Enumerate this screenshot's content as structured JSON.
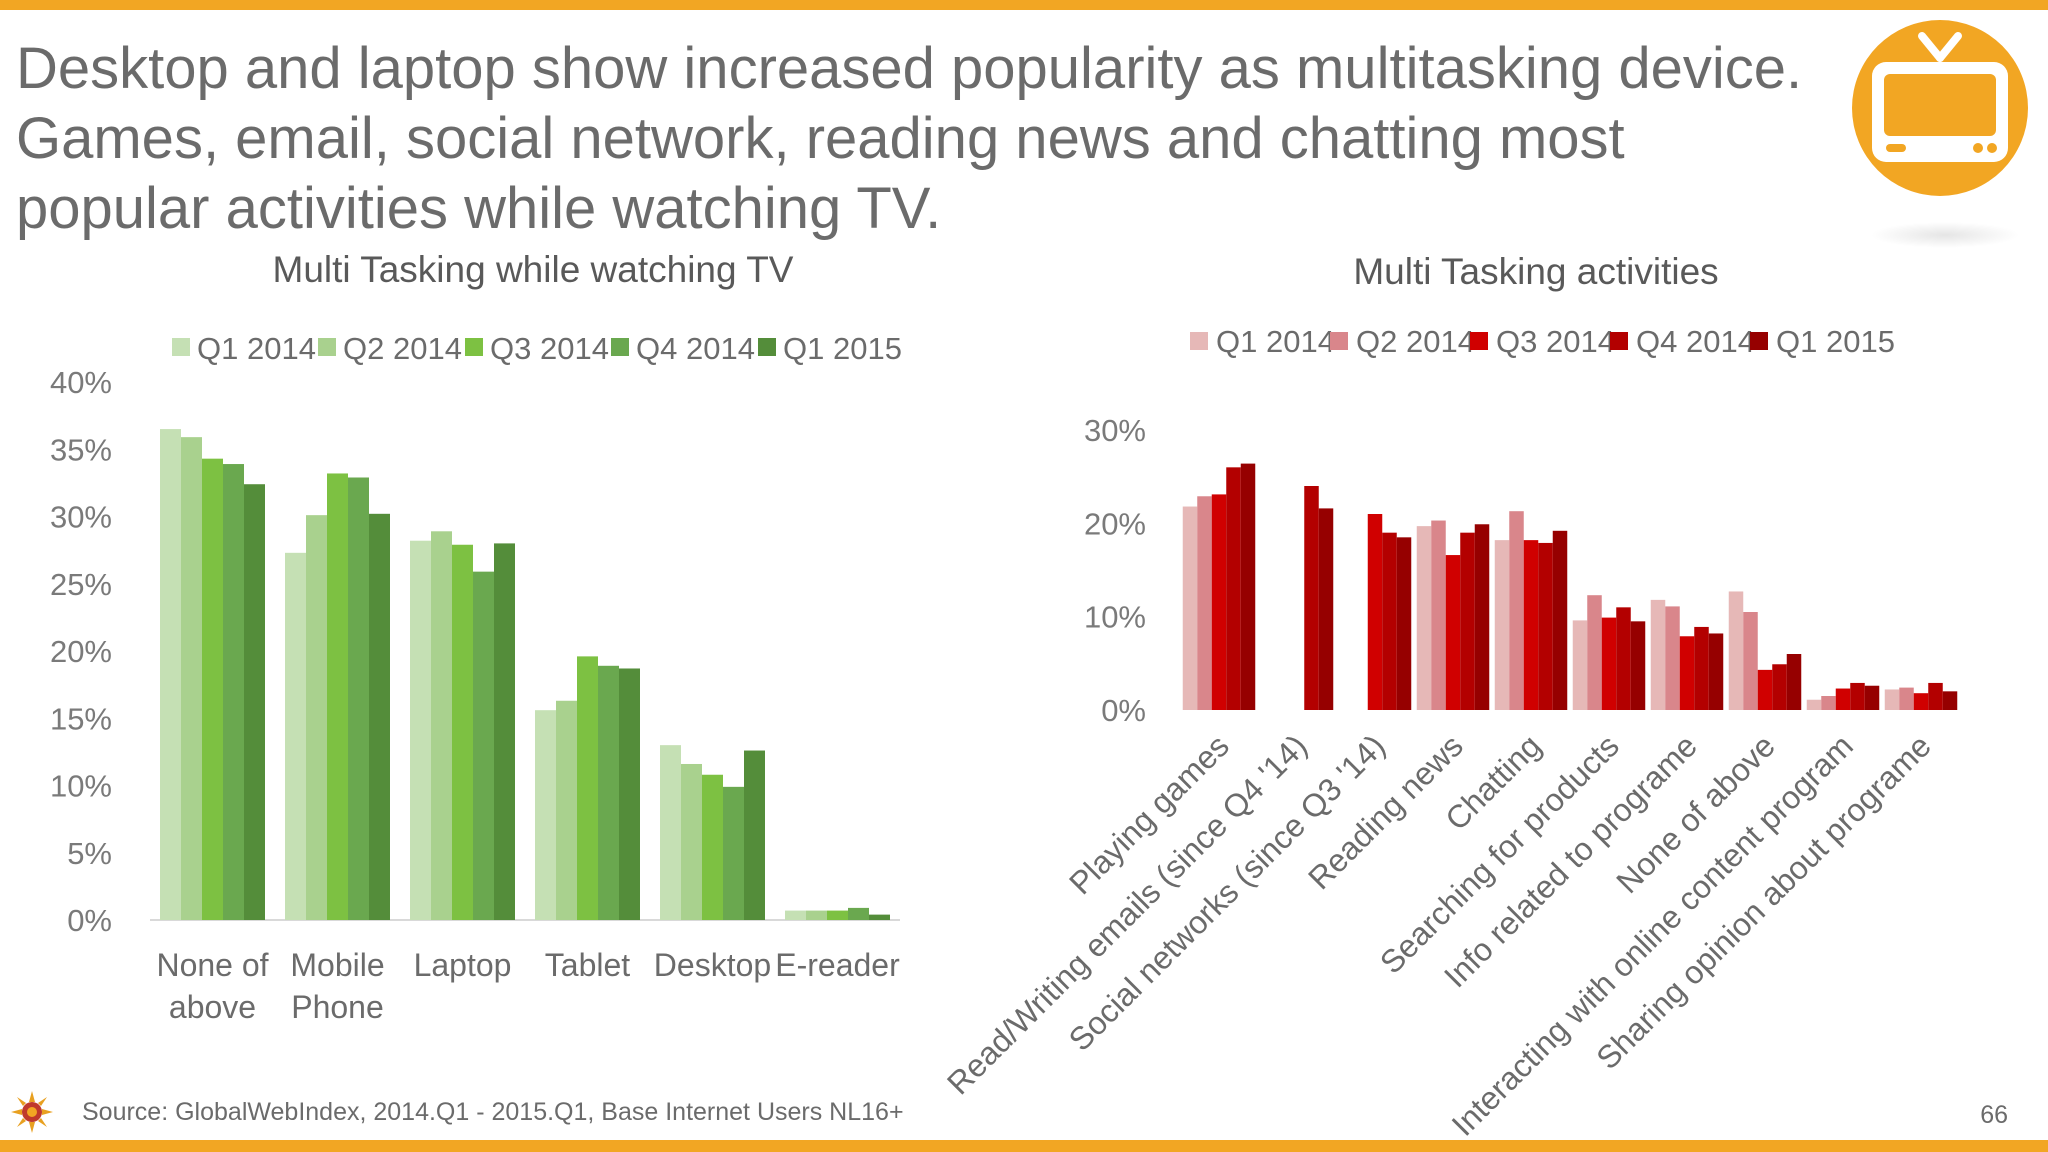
{
  "slide": {
    "headline": "Desktop and laptop show increased popularity as multitasking device. Games, email, social network, reading news and chatting most popular activities while watching TV.",
    "source": "Source: GlobalWebIndex, 2014.Q1 - 2015.Q1, Base Internet Users NL16+",
    "page_number": "66",
    "icon": "tv-icon",
    "accent_color": "#f2a623"
  },
  "chart_data": [
    {
      "type": "bar",
      "title": "Multi Tasking while watching TV",
      "categories": [
        "None of above",
        "Mobile Phone",
        "Laptop",
        "Tablet",
        "Desktop",
        "E-reader"
      ],
      "category_lines": [
        [
          "None of",
          "above"
        ],
        [
          "Mobile",
          "Phone"
        ],
        [
          "Laptop"
        ],
        [
          "Tablet"
        ],
        [
          "Desktop"
        ],
        [
          "E-reader"
        ]
      ],
      "ylim": [
        0,
        40
      ],
      "yticks": [
        0,
        5,
        10,
        15,
        20,
        25,
        30,
        35,
        40
      ],
      "ytick_labels": [
        "0%",
        "5%",
        "10%",
        "15%",
        "20%",
        "25%",
        "30%",
        "35%",
        "40%"
      ],
      "grid": false,
      "legend_position": "top",
      "series": [
        {
          "name": "Q1 2014",
          "color": "#c5e0b4",
          "values": [
            36.5,
            27.3,
            28.2,
            15.6,
            13.0,
            0.7
          ]
        },
        {
          "name": "Q2 2014",
          "color": "#a9d18e",
          "values": [
            35.9,
            30.1,
            28.9,
            16.3,
            11.6,
            0.7
          ]
        },
        {
          "name": "Q3 2014",
          "color": "#7dc142",
          "values": [
            34.3,
            33.2,
            27.9,
            19.6,
            10.8,
            0.7
          ]
        },
        {
          "name": "Q4 2014",
          "color": "#6aa84f",
          "values": [
            33.9,
            32.9,
            25.9,
            18.9,
            9.9,
            0.9
          ]
        },
        {
          "name": "Q1 2015",
          "color": "#548d3a",
          "values": [
            32.4,
            30.2,
            28.0,
            18.7,
            12.6,
            0.4
          ]
        }
      ]
    },
    {
      "type": "bar",
      "title": "Multi Tasking activities",
      "categories": [
        "Playing games",
        "Read/Writing emails (since Q4 '14)",
        "Social networks (since Q3 '14)",
        "Reading news",
        "Chatting",
        "Searching for products",
        "Info related to programe",
        "None of above",
        "Interacting with online content program",
        "Sharing opinion about programe"
      ],
      "ylim": [
        0,
        30
      ],
      "yticks": [
        0,
        10,
        20,
        30
      ],
      "ytick_labels": [
        "0%",
        "10%",
        "20%",
        "30%"
      ],
      "grid": false,
      "legend_position": "top",
      "series": [
        {
          "name": "Q1 2014",
          "color": "#e6b8b7",
          "values": [
            21.8,
            null,
            null,
            19.7,
            18.2,
            9.6,
            11.8,
            12.7,
            1.1,
            2.2
          ]
        },
        {
          "name": "Q2 2014",
          "color": "#d9868b",
          "values": [
            22.9,
            null,
            null,
            20.3,
            21.3,
            12.3,
            11.1,
            10.5,
            1.5,
            2.4
          ]
        },
        {
          "name": "Q3 2014",
          "color": "#d00000",
          "values": [
            23.1,
            null,
            21.0,
            16.6,
            18.2,
            9.9,
            7.9,
            4.3,
            2.3,
            1.8
          ]
        },
        {
          "name": "Q4 2014",
          "color": "#b30000",
          "values": [
            26.0,
            24.0,
            19.0,
            19.0,
            17.9,
            11.0,
            8.9,
            4.9,
            2.9,
            2.9
          ]
        },
        {
          "name": "Q1 2015",
          "color": "#960000",
          "values": [
            26.4,
            21.6,
            18.5,
            19.9,
            19.2,
            9.5,
            8.2,
            6.0,
            2.6,
            2.0
          ]
        }
      ]
    }
  ]
}
